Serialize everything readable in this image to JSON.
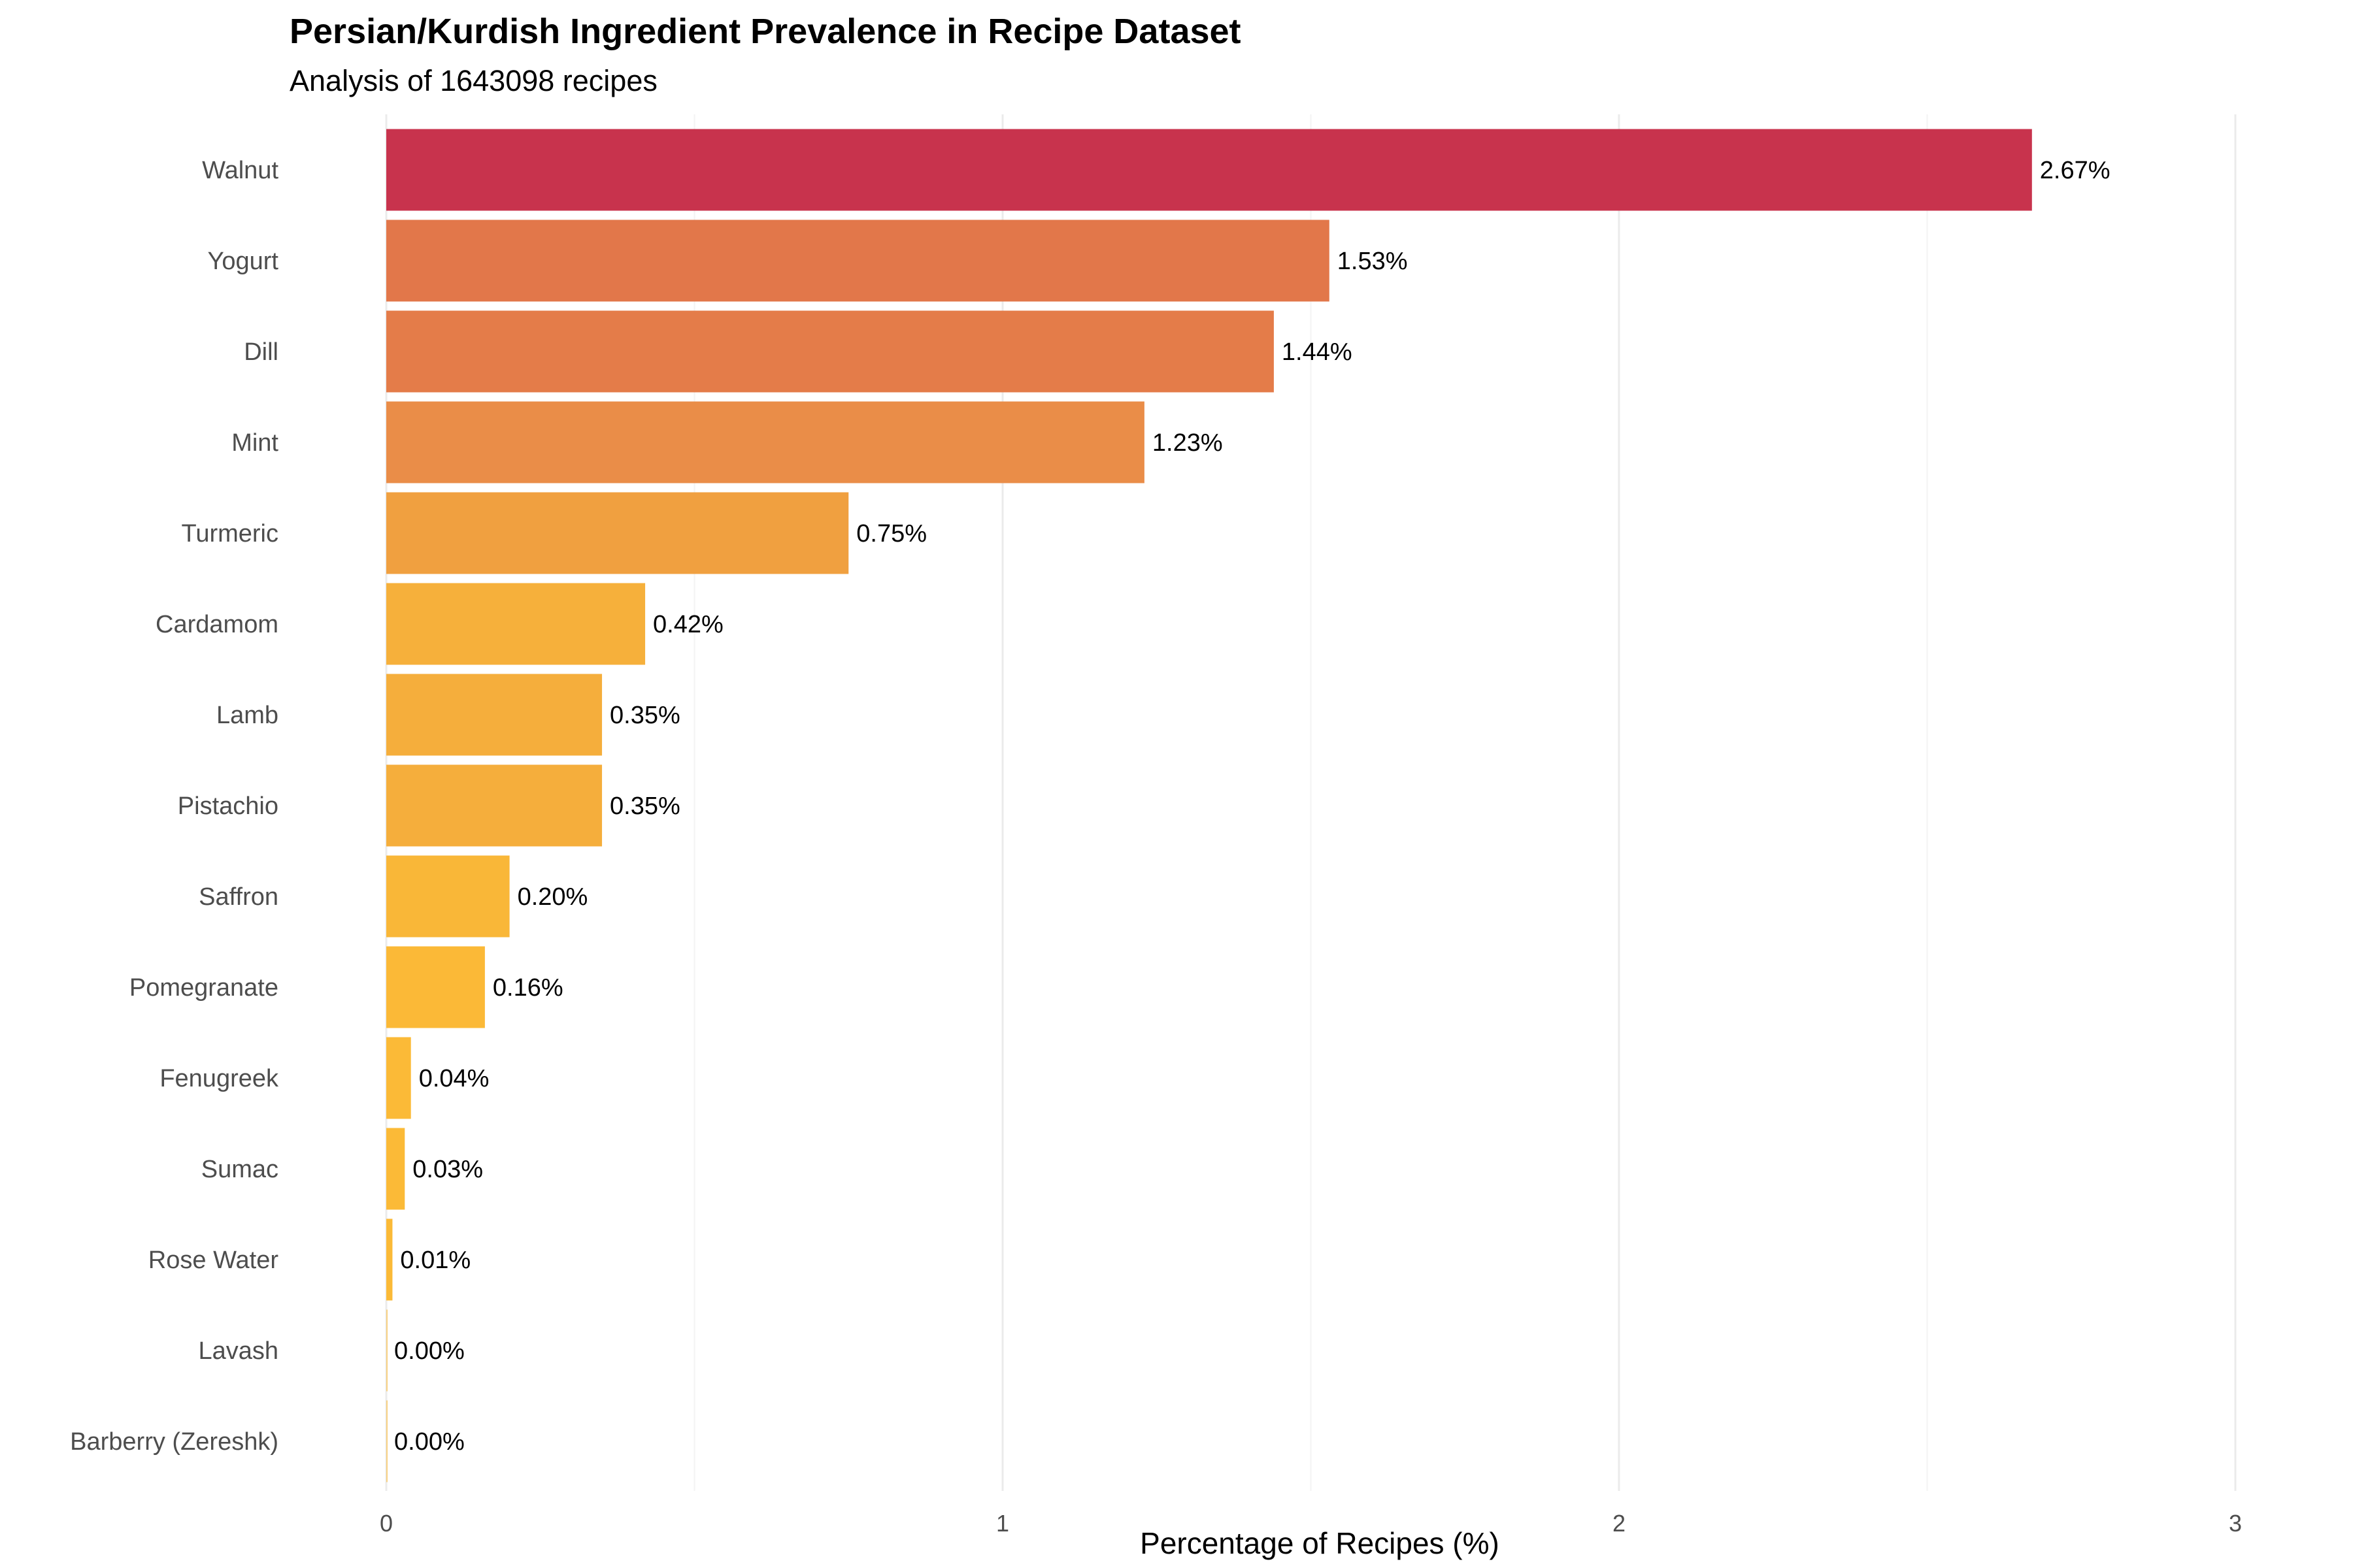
{
  "chart_data": {
    "type": "bar",
    "orientation": "horizontal",
    "title": "Persian/Kurdish Ingredient Prevalence in Recipe Dataset",
    "subtitle": "Analysis of 1643098 recipes",
    "xlabel": "Percentage of Recipes (%)",
    "ylabel": "",
    "xlim": [
      0,
      3
    ],
    "x_ticks": [
      "0",
      "1",
      "2",
      "3"
    ],
    "grid": "vertical",
    "legend": "none",
    "categories": [
      "Walnut",
      "Yogurt",
      "Dill",
      "Mint",
      "Turmeric",
      "Cardamom",
      "Lamb",
      "Pistachio",
      "Saffron",
      "Pomegranate",
      "Fenugreek",
      "Sumac",
      "Rose Water",
      "Lavash",
      "Barberry (Zereshk)"
    ],
    "values": [
      2.67,
      1.53,
      1.44,
      1.23,
      0.75,
      0.42,
      0.35,
      0.35,
      0.2,
      0.16,
      0.04,
      0.03,
      0.01,
      0.0,
      0.0
    ],
    "value_labels": [
      "2.67%",
      "1.53%",
      "1.44%",
      "1.23%",
      "0.75%",
      "0.42%",
      "0.35%",
      "0.35%",
      "0.20%",
      "0.16%",
      "0.04%",
      "0.03%",
      "0.01%",
      "0.00%",
      "0.00%"
    ],
    "colors": [
      "#c8334d",
      "#e2774a",
      "#e47c49",
      "#ea8d48",
      "#f0a040",
      "#f6b03b",
      "#f5ae3c",
      "#f5ae3c",
      "#f9b738",
      "#fbb937",
      "#fbba37",
      "#fbba37",
      "#fbba37",
      "#fbba37",
      "#fbba37"
    ]
  }
}
